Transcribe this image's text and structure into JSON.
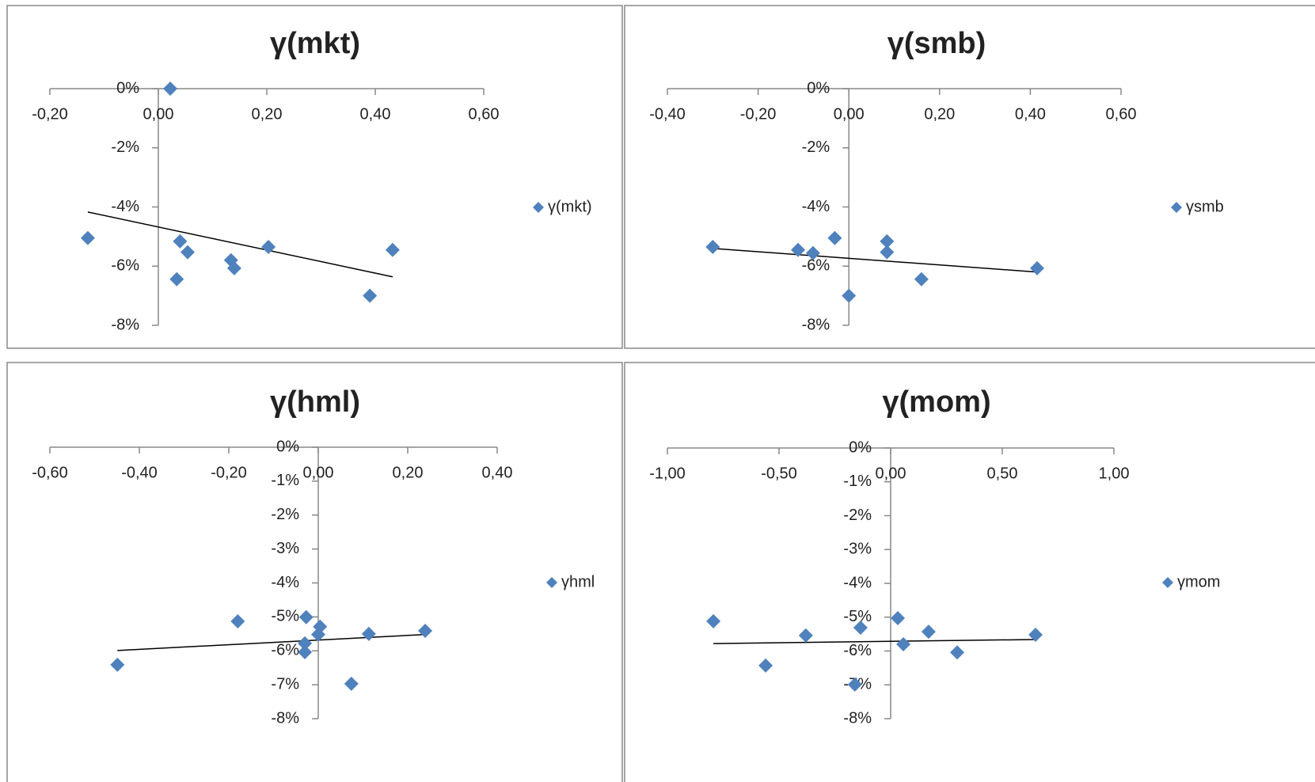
{
  "chart_data": [
    {
      "type": "scatter",
      "title": "γ(mkt)",
      "x": [
        0.022,
        -0.13,
        0.04,
        0.054,
        0.034,
        0.134,
        0.14,
        0.203,
        0.432,
        0.39
      ],
      "series": [
        {
          "name": "γ(mkt)",
          "color": "#4F81BD",
          "values": [
            0,
            -5.05,
            -5.16,
            -5.53,
            -6.44,
            -5.8,
            -6.07,
            -5.35,
            -5.45,
            -7.0
          ]
        }
      ],
      "trendline": {
        "x": [
          -0.13,
          0.432
        ],
        "y": [
          -4.17,
          -6.36
        ]
      },
      "xlim": [
        -0.2,
        0.6
      ],
      "xticks": [
        {
          "value": -0.2,
          "label": "-0,20"
        },
        {
          "value": 0,
          "label": "0,00"
        },
        {
          "value": 0.2,
          "label": "0,20"
        },
        {
          "value": 0.4,
          "label": "0,40"
        },
        {
          "value": 0.6,
          "label": "0,60"
        }
      ],
      "ylim": [
        -8,
        0
      ],
      "yticks": [
        {
          "value": 0,
          "label": "0%"
        },
        {
          "value": -2,
          "label": "-2%"
        },
        {
          "value": -4,
          "label": "-4%"
        },
        {
          "value": -6,
          "label": "-6%"
        },
        {
          "value": -8,
          "label": "-8%"
        }
      ],
      "legend": "right"
    },
    {
      "type": "scatter",
      "title": "γ(smb)",
      "x": [
        -0.3,
        -0.112,
        -0.079,
        -0.031,
        0.084,
        0.084,
        0.16,
        0.415,
        0.0
      ],
      "series": [
        {
          "name": "γsmb",
          "color": "#4F81BD",
          "values": [
            -5.35,
            -5.45,
            -5.56,
            -5.05,
            -5.16,
            -5.53,
            -6.44,
            -6.07,
            -7.0
          ]
        }
      ],
      "trendline": {
        "x": [
          -0.3,
          0.415
        ],
        "y": [
          -5.4,
          -6.2
        ]
      },
      "xlim": [
        -0.4,
        0.6
      ],
      "xticks": [
        {
          "value": -0.4,
          "label": "-0,40"
        },
        {
          "value": -0.2,
          "label": "-0,20"
        },
        {
          "value": 0,
          "label": "0,00"
        },
        {
          "value": 0.2,
          "label": "0,20"
        },
        {
          "value": 0.4,
          "label": "0,40"
        },
        {
          "value": 0.6,
          "label": "0,60"
        }
      ],
      "ylim": [
        -8,
        0
      ],
      "yticks": [
        {
          "value": 0,
          "label": "0%"
        },
        {
          "value": -2,
          "label": "-2%"
        },
        {
          "value": -4,
          "label": "-4%"
        },
        {
          "value": -6,
          "label": "-6%"
        },
        {
          "value": -8,
          "label": "-8%"
        }
      ],
      "legend": "right"
    },
    {
      "type": "scatter",
      "title": "γ(hml)",
      "x": [
        -0.449,
        -0.18,
        -0.027,
        0.004,
        0.0,
        -0.03,
        -0.03,
        0.113,
        0.239,
        0.074
      ],
      "series": [
        {
          "name": "γhml",
          "color": "#4F81BD",
          "values": [
            -6.41,
            -5.13,
            -5.01,
            -5.29,
            -5.52,
            -5.78,
            -6.04,
            -5.5,
            -5.41,
            -6.97
          ]
        }
      ],
      "trendline": {
        "x": [
          -0.449,
          0.239
        ],
        "y": [
          -5.99,
          -5.52
        ]
      },
      "xlim": [
        -0.6,
        0.4
      ],
      "xticks": [
        {
          "value": -0.6,
          "label": "-0,60"
        },
        {
          "value": -0.4,
          "label": "-0,40"
        },
        {
          "value": -0.2,
          "label": "-0,20"
        },
        {
          "value": 0,
          "label": "0,00"
        },
        {
          "value": 0.2,
          "label": "0,20"
        },
        {
          "value": 0.4,
          "label": "0,40"
        }
      ],
      "ylim": [
        -8,
        0
      ],
      "yticks": [
        {
          "value": 0,
          "label": "0%"
        },
        {
          "value": -1,
          "label": "-1%"
        },
        {
          "value": -2,
          "label": "-2%"
        },
        {
          "value": -3,
          "label": "-3%"
        },
        {
          "value": -4,
          "label": "-4%"
        },
        {
          "value": -5,
          "label": "-5%"
        },
        {
          "value": -6,
          "label": "-6%"
        },
        {
          "value": -7,
          "label": "-7%"
        },
        {
          "value": -8,
          "label": "-8%"
        }
      ],
      "legend": "right"
    },
    {
      "type": "scatter",
      "title": "γ(mom)",
      "x": [
        -0.794,
        -0.56,
        -0.38,
        -0.135,
        -0.16,
        0.032,
        0.057,
        0.17,
        0.298,
        0.649
      ],
      "series": [
        {
          "name": "γmom",
          "color": "#4F81BD",
          "values": [
            -5.12,
            -6.43,
            -5.54,
            -5.31,
            -6.99,
            -5.03,
            -5.8,
            -5.43,
            -6.04,
            -5.52
          ]
        }
      ],
      "trendline": {
        "x": [
          -0.794,
          0.649
        ],
        "y": [
          -5.78,
          -5.66
        ]
      },
      "xlim": [
        -1,
        1
      ],
      "xticks": [
        {
          "value": -1,
          "label": "-1,00"
        },
        {
          "value": -0.5,
          "label": "-0,50"
        },
        {
          "value": 0,
          "label": "0,00"
        },
        {
          "value": 0.5,
          "label": "0,50"
        },
        {
          "value": 1,
          "label": "1,00"
        }
      ],
      "ylim": [
        -8,
        0
      ],
      "yticks": [
        {
          "value": 0,
          "label": "0%"
        },
        {
          "value": -1,
          "label": "-1%"
        },
        {
          "value": -2,
          "label": "-2%"
        },
        {
          "value": -3,
          "label": "-3%"
        },
        {
          "value": -4,
          "label": "-4%"
        },
        {
          "value": -5,
          "label": "-5%"
        },
        {
          "value": -6,
          "label": "-6%"
        },
        {
          "value": -7,
          "label": "-7%"
        },
        {
          "value": -8,
          "label": "-8%"
        }
      ],
      "legend": "right"
    }
  ]
}
